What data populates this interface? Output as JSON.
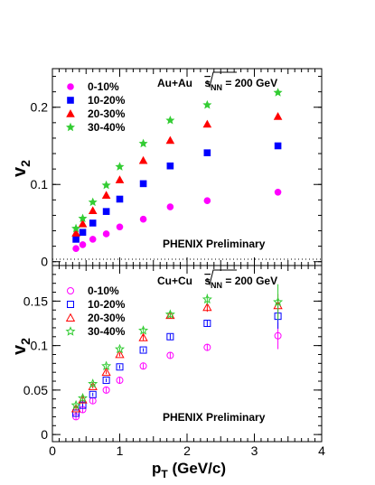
{
  "chart_data": [
    {
      "type": "scatter",
      "ylabel_main": "v",
      "ylabel_sub": "2",
      "ylim": [
        -0.005,
        0.25
      ],
      "yticks": [
        0,
        0.1,
        0.2
      ],
      "xlim": [
        0,
        4
      ],
      "title_main": "Au+Au ",
      "title_root": "s",
      "title_root_sub": "NN",
      "title_tail": " = 200 GeV",
      "annotation": "PHENIX Preliminary",
      "marker_style": "filled",
      "series": [
        {
          "name": "0-10%",
          "color": "#ff00ff",
          "marker": "circle",
          "x": [
            0.35,
            0.45,
            0.6,
            0.8,
            1.0,
            1.35,
            1.75,
            2.3,
            3.35
          ],
          "y": [
            0.017,
            0.022,
            0.029,
            0.036,
            0.045,
            0.055,
            0.071,
            0.079,
            0.09
          ]
        },
        {
          "name": "10-20%",
          "color": "#0000ff",
          "marker": "square",
          "x": [
            0.35,
            0.45,
            0.6,
            0.8,
            1.0,
            1.35,
            1.75,
            2.3,
            3.35
          ],
          "y": [
            0.029,
            0.038,
            0.05,
            0.065,
            0.081,
            0.101,
            0.124,
            0.141,
            0.15
          ]
        },
        {
          "name": "20-30%",
          "color": "#ff0000",
          "marker": "triangle",
          "x": [
            0.35,
            0.45,
            0.6,
            0.8,
            1.0,
            1.35,
            1.75,
            2.3,
            3.35
          ],
          "y": [
            0.037,
            0.049,
            0.066,
            0.086,
            0.106,
            0.131,
            0.157,
            0.178,
            0.188
          ]
        },
        {
          "name": "30-40%",
          "color": "#33cc33",
          "marker": "star",
          "x": [
            0.35,
            0.45,
            0.6,
            0.8,
            1.0,
            1.35,
            1.75,
            2.3,
            3.35
          ],
          "y": [
            0.043,
            0.056,
            0.077,
            0.099,
            0.123,
            0.153,
            0.183,
            0.203,
            0.219
          ]
        }
      ]
    },
    {
      "type": "scatter",
      "ylabel_main": "v",
      "ylabel_sub": "2",
      "xlabel_main": "p",
      "xlabel_sub": "T",
      "xlabel_tail": " (GeV/c)",
      "ylim": [
        -0.008,
        0.19
      ],
      "yticks": [
        0,
        0.05,
        0.1,
        0.15
      ],
      "xlim": [
        0,
        4
      ],
      "xticks": [
        0,
        1,
        2,
        3,
        4
      ],
      "title_main": "Cu+Cu ",
      "title_root": "s",
      "title_root_sub": "NN",
      "title_tail": " = 200 GeV",
      "annotation": "PHENIX Preliminary",
      "marker_style": "open",
      "series": [
        {
          "name": "0-10%",
          "color": "#ff00ff",
          "marker": "circle",
          "x": [
            0.35,
            0.45,
            0.6,
            0.8,
            1.0,
            1.35,
            1.75,
            2.3,
            3.35
          ],
          "y": [
            0.02,
            0.028,
            0.038,
            0.05,
            0.061,
            0.077,
            0.089,
            0.098,
            0.111
          ],
          "err": [
            0.003,
            0.003,
            0.003,
            0.003,
            0.003,
            0.003,
            0.003,
            0.004,
            0.015
          ]
        },
        {
          "name": "10-20%",
          "color": "#0000ff",
          "marker": "square",
          "x": [
            0.35,
            0.45,
            0.6,
            0.8,
            1.0,
            1.35,
            1.75,
            2.3,
            3.35
          ],
          "y": [
            0.024,
            0.033,
            0.045,
            0.061,
            0.076,
            0.095,
            0.11,
            0.125,
            0.133
          ],
          "err": [
            0.002,
            0.002,
            0.002,
            0.002,
            0.002,
            0.002,
            0.003,
            0.004,
            0.014
          ]
        },
        {
          "name": "20-30%",
          "color": "#ff0000",
          "marker": "triangle",
          "x": [
            0.35,
            0.45,
            0.6,
            0.8,
            1.0,
            1.35,
            1.75,
            2.3,
            3.35
          ],
          "y": [
            0.029,
            0.039,
            0.054,
            0.07,
            0.09,
            0.109,
            0.134,
            0.143,
            0.145
          ],
          "err": [
            0.002,
            0.002,
            0.002,
            0.002,
            0.002,
            0.003,
            0.003,
            0.005,
            0.013
          ]
        },
        {
          "name": "30-40%",
          "color": "#33cc33",
          "marker": "star",
          "x": [
            0.35,
            0.45,
            0.6,
            0.8,
            1.0,
            1.35,
            1.75,
            2.3,
            3.35
          ],
          "y": [
            0.033,
            0.041,
            0.057,
            0.077,
            0.096,
            0.117,
            0.135,
            0.152,
            0.149
          ],
          "err": [
            0.002,
            0.002,
            0.002,
            0.002,
            0.002,
            0.003,
            0.003,
            0.006,
            0.02
          ]
        }
      ]
    }
  ]
}
